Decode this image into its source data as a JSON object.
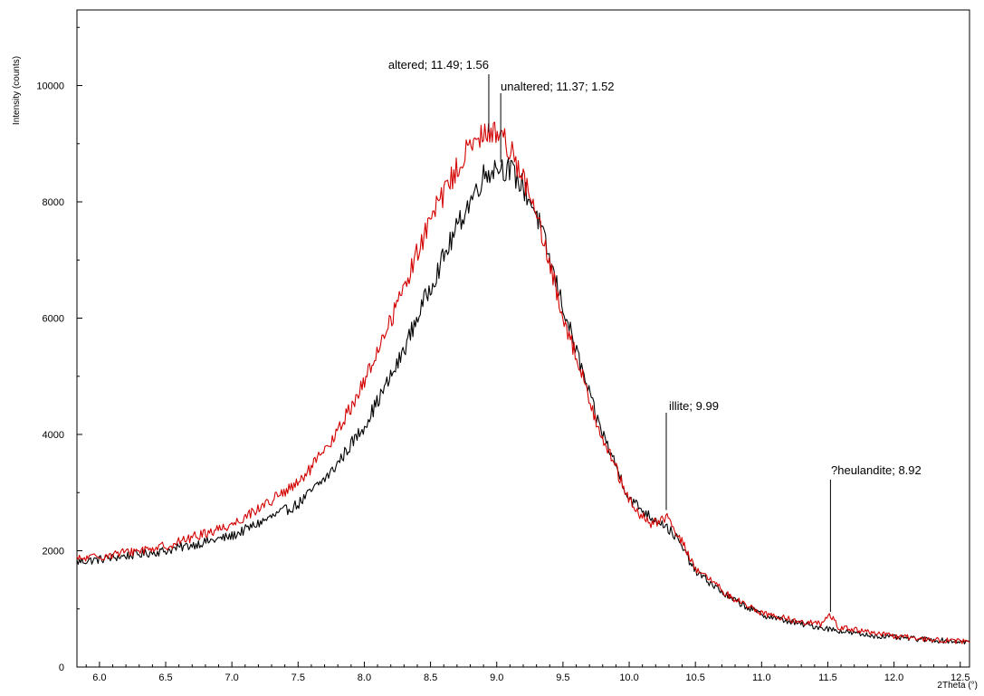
{
  "chart_data": {
    "type": "line",
    "title": "",
    "xlabel": "2Theta (°)",
    "ylabel": "Intensity (counts)",
    "xlim": [
      5.83,
      12.57
    ],
    "ylim": [
      0,
      11300
    ],
    "x_ticks": [
      "6.0",
      "6.5",
      "7.0",
      "7.5",
      "8.0",
      "8.5",
      "9.0",
      "9.5",
      "10.0",
      "10.5",
      "11.0",
      "11.5",
      "12.0",
      "12.5"
    ],
    "y_ticks": [
      "0",
      "2000",
      "4000",
      "6000",
      "8000",
      "10000"
    ],
    "grid": false,
    "legend": "none",
    "series": [
      {
        "color": "#000000",
        "x": [
          5.83,
          6.0,
          6.5,
          7.0,
          7.5,
          7.75,
          8.0,
          8.25,
          8.5,
          8.75,
          8.9,
          9.0,
          9.1,
          9.2,
          9.3,
          9.5,
          9.75,
          10.0,
          10.15,
          10.25,
          10.35,
          10.5,
          10.75,
          11.0,
          11.25,
          11.5,
          11.75,
          12.0,
          12.25,
          12.57
        ],
        "y": [
          1810,
          1850,
          2000,
          2250,
          2800,
          3350,
          4150,
          5200,
          6550,
          7800,
          8450,
          8620,
          8550,
          8250,
          7800,
          6200,
          4300,
          2900,
          2600,
          2480,
          2250,
          1650,
          1200,
          900,
          760,
          660,
          560,
          510,
          470,
          430
        ]
      },
      {
        "color": "#d40000",
        "x": [
          5.83,
          6.0,
          6.5,
          7.0,
          7.5,
          7.75,
          8.0,
          8.25,
          8.5,
          8.75,
          8.9,
          9.0,
          9.1,
          9.2,
          9.3,
          9.5,
          9.75,
          10.0,
          10.15,
          10.28,
          10.4,
          10.5,
          10.75,
          11.0,
          11.25,
          11.45,
          11.52,
          11.58,
          11.75,
          12.0,
          12.25,
          12.57
        ],
        "y": [
          1850,
          1900,
          2080,
          2450,
          3150,
          3850,
          4900,
          6250,
          7700,
          8800,
          9150,
          9220,
          8950,
          8400,
          7750,
          6050,
          4250,
          2850,
          2450,
          2570,
          2150,
          1700,
          1230,
          930,
          800,
          740,
          900,
          690,
          620,
          530,
          480,
          430
        ]
      }
    ],
    "annotations": [
      {
        "text": "altered; 11.49; 1.56",
        "x": 8.94,
        "y": 9200
      },
      {
        "text": "unaltered; 11.37; 1.52",
        "x": 9.03,
        "y": 8680
      },
      {
        "text": "illite; 9.99",
        "x": 10.28,
        "y": 2700
      },
      {
        "text": "?heulandite; 8.92",
        "x": 11.52,
        "y": 950
      }
    ]
  }
}
